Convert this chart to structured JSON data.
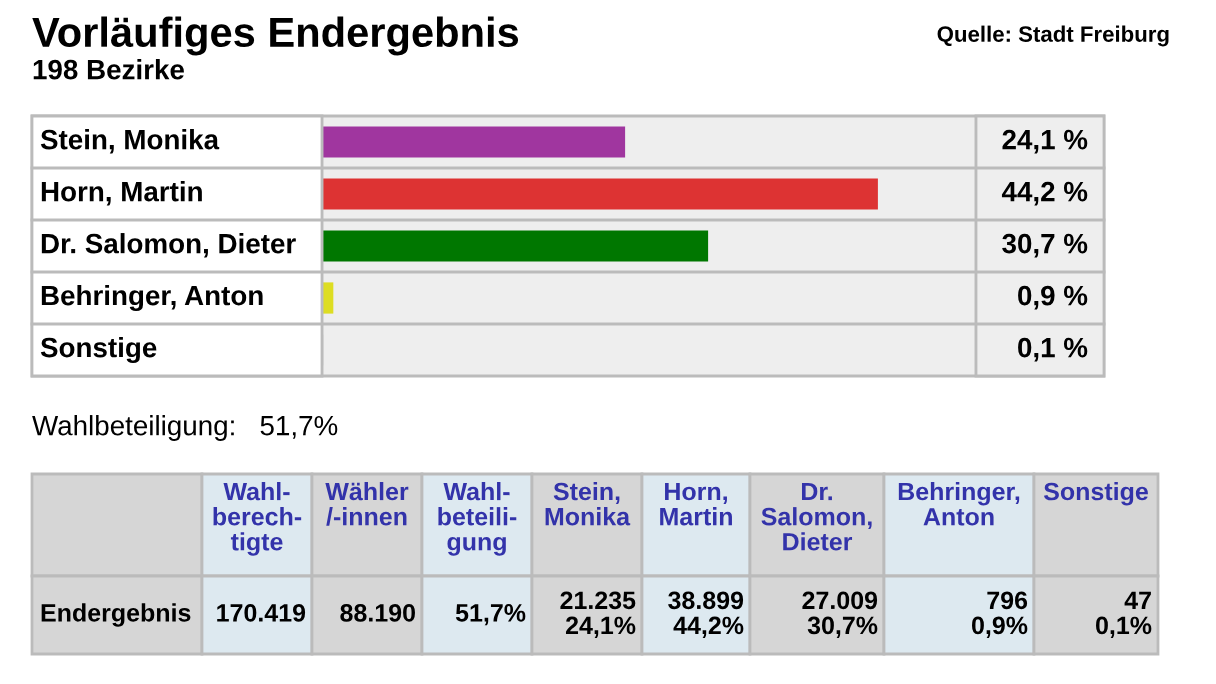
{
  "chart_data": {
    "type": "bar",
    "orientation": "horizontal",
    "title": "Vorläufiges Endergebnis",
    "subtitle": "198 Bezirke",
    "categories": [
      "Stein, Monika",
      "Horn, Martin",
      "Dr. Salomon, Dieter",
      "Behringer, Anton",
      "Sonstige"
    ],
    "values": [
      24.1,
      44.2,
      30.7,
      0.9,
      0.1
    ],
    "colors": [
      "#a0369f",
      "#dd3333",
      "#007700",
      "#dddd22",
      "#cccccc"
    ],
    "value_labels": [
      "24,1 %",
      "44,2 %",
      "30,7 %",
      "0,9 %",
      "0,1 %"
    ],
    "xlim": [
      0,
      52
    ],
    "annotations": [
      "Quelle: Stadt Freiburg",
      "Wahlbeteiligung:   51,7%",
      "Wahl-\nberech-\ntigte",
      "Wähler\n/-innen",
      "Wahl-\nbeteili-\ngung",
      "Stein,\nMonika",
      "Horn,\nMartin",
      "Dr.\nSalomon,\nDieter",
      "Behringer,\nAnton",
      "Sonstige",
      "Endergebnis",
      "170.419",
      "88.190",
      "51,7%",
      "21.235\n24,1%",
      "38.899\n44,2%",
      "27.009\n30,7%",
      "796\n0,9%",
      "47\n0,1%"
    ]
  }
}
